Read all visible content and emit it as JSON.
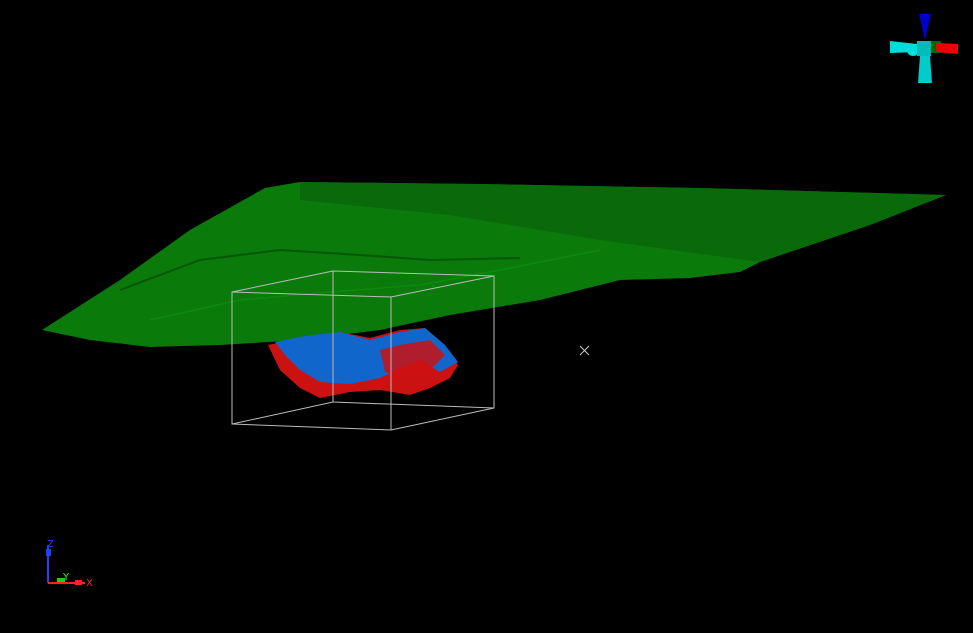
{
  "viewer": {
    "background": "#000000",
    "surface_color": "#0a7a0a",
    "body_colors": {
      "primary": "#1166cc",
      "secondary": "#cc1111"
    },
    "bounding_box_color": "#bbbbbb",
    "center_marker_icon": "x-cross-icon"
  },
  "axis_triad": {
    "z_label": "Z",
    "y_label": "Y",
    "x_label": "X",
    "colors": {
      "x": "#ff2020",
      "y": "#20ff20",
      "z": "#2040ff"
    }
  },
  "orientation_gizmo": {
    "icon": "view-cube-gizmo-icon"
  }
}
